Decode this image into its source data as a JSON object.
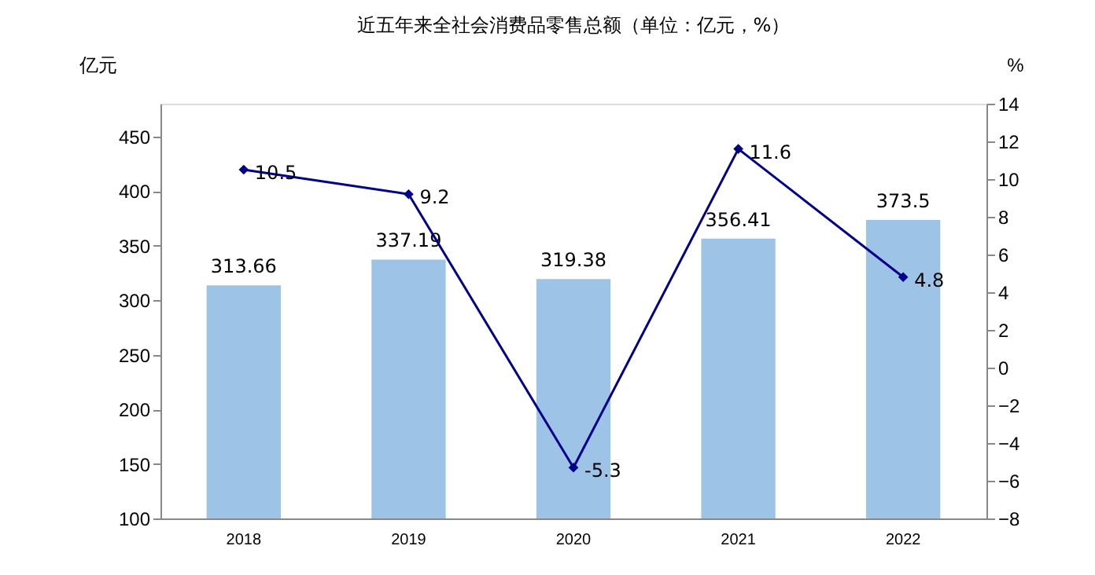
{
  "chart_data": {
    "type": "bar",
    "title": "近五年来全社会消费品零售总额（单位：亿元，%）",
    "categories": [
      "2018",
      "2019",
      "2020",
      "2021",
      "2022"
    ],
    "series": [
      {
        "color": "#9dc3e6",
        "values": [
          313.66,
          337.19,
          319.38,
          356.41,
          373.5
        ]
      },
      {
        "type": "line",
        "axis": "y2",
        "color": "#00008b",
        "marker": "diamond",
        "values": [
          10.5,
          9.2,
          -5.3,
          11.6,
          4.8
        ]
      }
    ],
    "ylabel": "亿元",
    "y2label": "%",
    "ylim": [
      100,
      480
    ],
    "yticks": [
      100,
      150,
      200,
      250,
      300,
      350,
      400,
      450
    ],
    "y2lim": [
      -8,
      14
    ],
    "y2ticks": [
      -8,
      -6,
      -4,
      -2,
      0,
      2,
      4,
      6,
      8,
      10,
      12,
      14
    ],
    "data_labels": true,
    "grid": false
  }
}
